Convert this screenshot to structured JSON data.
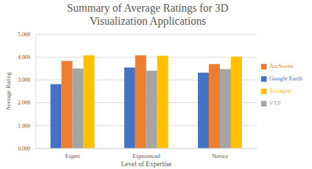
{
  "chart_data": {
    "type": "bar",
    "title": "Summary of Average Ratings for 3D Visualization Applications",
    "x_label": "Level of Expertise",
    "y_label": "Average Rating",
    "categories": [
      "Expert",
      "Experienced",
      "Novice"
    ],
    "series": [
      {
        "name": "Google Earth",
        "color": "#4472c4",
        "values": [
          2.82,
          3.55,
          3.32
        ]
      },
      {
        "name": "ArcScene",
        "color": "#ed7d31",
        "values": [
          3.83,
          4.08,
          3.7
        ]
      },
      {
        "name": "VTP",
        "color": "#a5a5a5",
        "values": [
          3.5,
          3.4,
          3.48
        ]
      },
      {
        "name": "Terragen",
        "color": "#ffc000",
        "values": [
          4.08,
          4.06,
          4.02
        ]
      }
    ],
    "ylim": [
      0,
      5
    ],
    "yticks": [
      {
        "value": 0,
        "label": "0.000"
      },
      {
        "value": 1,
        "label": "1.000"
      },
      {
        "value": 2,
        "label": "2.000"
      },
      {
        "value": 3,
        "label": "3.000"
      },
      {
        "value": 4,
        "label": "4.000"
      },
      {
        "value": 5,
        "label": "5.000"
      }
    ],
    "grid": true,
    "legend": "right"
  }
}
